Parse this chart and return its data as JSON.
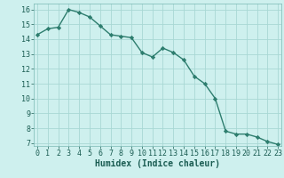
{
  "x": [
    0,
    1,
    2,
    3,
    4,
    5,
    6,
    7,
    8,
    9,
    10,
    11,
    12,
    13,
    14,
    15,
    16,
    17,
    18,
    19,
    20,
    21,
    22,
    23
  ],
  "y": [
    14.3,
    14.7,
    14.8,
    16.0,
    15.8,
    15.5,
    14.9,
    14.3,
    14.2,
    14.1,
    13.1,
    12.8,
    13.4,
    13.1,
    12.6,
    11.5,
    11.0,
    10.0,
    7.8,
    7.6,
    7.6,
    7.4,
    7.1,
    6.9
  ],
  "line_color": "#2d7d6e",
  "marker": "D",
  "marker_size": 2.2,
  "bg_color": "#cef0ee",
  "grid_color": "#a8d8d4",
  "xlabel": "Humidex (Indice chaleur)",
  "ylim_min": 6.8,
  "ylim_max": 16.4,
  "xlim_min": -0.3,
  "xlim_max": 23.3,
  "yticks": [
    7,
    8,
    9,
    10,
    11,
    12,
    13,
    14,
    15,
    16
  ],
  "xticks": [
    0,
    1,
    2,
    3,
    4,
    5,
    6,
    7,
    8,
    9,
    10,
    11,
    12,
    13,
    14,
    15,
    16,
    17,
    18,
    19,
    20,
    21,
    22,
    23
  ],
  "xlabel_fontsize": 7,
  "tick_fontsize": 6,
  "line_width": 1.0,
  "tick_color": "#1a5c52",
  "label_color": "#1a5c52"
}
